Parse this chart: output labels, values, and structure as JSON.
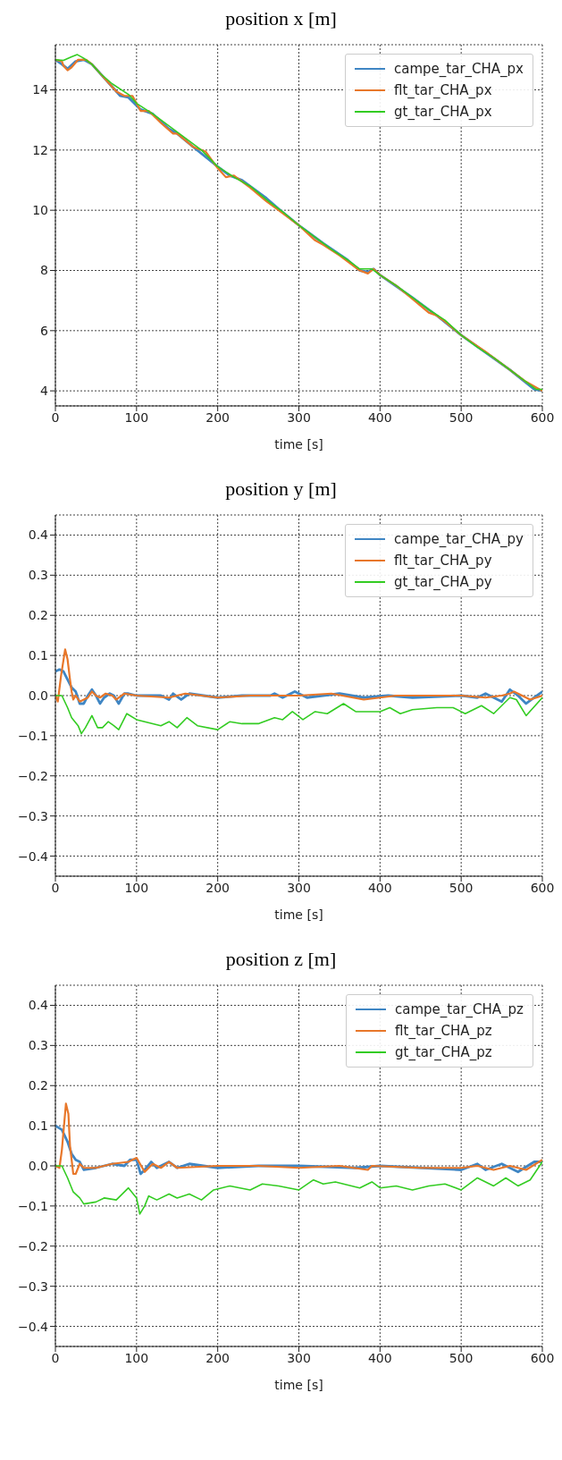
{
  "chart_data": [
    {
      "type": "line",
      "title": "position x [m]",
      "xlabel": "time [s]",
      "xlim": [
        0,
        600
      ],
      "xticks": [
        0,
        100,
        200,
        300,
        400,
        500,
        600
      ],
      "ylim": [
        3.5,
        15.5
      ],
      "yticks": [
        4,
        6,
        8,
        10,
        12,
        14
      ],
      "grid": true,
      "legend": "top right",
      "series": [
        {
          "name": "campe_tar_CHA_px",
          "color": "#3f86c4",
          "x": [
            0,
            8,
            15,
            25,
            35,
            45,
            60,
            80,
            90,
            105,
            120,
            140,
            150,
            170,
            200,
            215,
            230,
            260,
            275,
            300,
            330,
            360,
            375,
            385,
            392,
            400,
            440,
            470,
            500,
            560,
            590,
            600
          ],
          "values": [
            15.0,
            14.85,
            14.7,
            14.95,
            15.0,
            14.85,
            14.4,
            13.8,
            13.75,
            13.35,
            13.2,
            12.7,
            12.55,
            12.1,
            11.45,
            11.15,
            11.0,
            10.4,
            10.05,
            9.5,
            8.9,
            8.35,
            8.0,
            7.95,
            8.05,
            7.85,
            7.1,
            6.5,
            5.85,
            4.7,
            4.05,
            4.0
          ]
        },
        {
          "name": "flt_tar_CHA_px",
          "color": "#e8772a",
          "x": [
            0,
            8,
            10,
            15,
            20,
            28,
            38,
            45,
            60,
            75,
            85,
            95,
            105,
            115,
            130,
            145,
            150,
            170,
            185,
            200,
            210,
            220,
            240,
            260,
            275,
            285,
            300,
            320,
            330,
            350,
            375,
            385,
            392,
            400,
            420,
            440,
            460,
            470,
            480,
            500,
            530,
            560,
            580,
            600
          ],
          "values": [
            15.0,
            14.95,
            14.8,
            14.65,
            14.75,
            15.0,
            15.0,
            14.85,
            14.4,
            13.95,
            13.8,
            13.8,
            13.3,
            13.3,
            12.9,
            12.55,
            12.55,
            12.1,
            11.95,
            11.4,
            11.1,
            11.15,
            10.75,
            10.3,
            10.0,
            9.8,
            9.5,
            9.0,
            8.85,
            8.5,
            8.0,
            7.9,
            8.05,
            7.85,
            7.5,
            7.05,
            6.6,
            6.5,
            6.3,
            5.85,
            5.3,
            4.7,
            4.3,
            4.0
          ]
        },
        {
          "name": "gt_tar_CHA_px",
          "color": "#33cc22",
          "x": [
            0,
            10,
            20,
            27,
            35,
            45,
            55,
            70,
            90,
            100,
            120,
            140,
            160,
            180,
            200,
            220,
            240,
            260,
            280,
            300,
            320,
            340,
            360,
            375,
            390,
            400,
            420,
            440,
            460,
            480,
            500,
            520,
            540,
            560,
            580,
            592,
            600
          ],
          "values": [
            15.0,
            14.98,
            15.1,
            15.17,
            15.05,
            14.85,
            14.55,
            14.2,
            13.85,
            13.55,
            13.2,
            12.8,
            12.4,
            12.0,
            11.45,
            11.1,
            10.8,
            10.35,
            9.95,
            9.5,
            9.1,
            8.7,
            8.35,
            8.05,
            8.05,
            7.85,
            7.5,
            7.1,
            6.7,
            6.35,
            5.85,
            5.45,
            5.1,
            4.7,
            4.3,
            4.05,
            4.05
          ]
        }
      ]
    },
    {
      "type": "line",
      "title": "position y [m]",
      "xlabel": "time [s]",
      "xlim": [
        0,
        600
      ],
      "xticks": [
        0,
        100,
        200,
        300,
        400,
        500,
        600
      ],
      "ylim": [
        -0.45,
        0.45
      ],
      "yticks": [
        {
          "value": -0.4,
          "label": "−0.4"
        },
        {
          "value": -0.3,
          "label": "−0.3"
        },
        {
          "value": -0.2,
          "label": "−0.2"
        },
        {
          "value": -0.1,
          "label": "−0.1"
        },
        {
          "value": 0,
          "label": "0.0"
        },
        {
          "value": 0.1,
          "label": "0.1"
        },
        {
          "value": 0.2,
          "label": "0.2"
        },
        {
          "value": 0.3,
          "label": "0.3"
        },
        {
          "value": 0.4,
          "label": "0.4"
        }
      ],
      "grid": true,
      "legend": "top right",
      "series": [
        {
          "name": "campe_tar_CHA_py",
          "color": "#3f86c4",
          "x": [
            0,
            5,
            10,
            15,
            20,
            25,
            30,
            35,
            40,
            45,
            50,
            55,
            60,
            67,
            72,
            78,
            85,
            90,
            100,
            130,
            140,
            145,
            155,
            165,
            200,
            230,
            265,
            270,
            280,
            295,
            310,
            350,
            380,
            410,
            440,
            500,
            520,
            530,
            540,
            550,
            560,
            570,
            580,
            590,
            600
          ],
          "values": [
            0.06,
            0.065,
            0.06,
            0.04,
            0.02,
            0.01,
            -0.02,
            -0.02,
            0.0,
            0.015,
            0.0,
            -0.02,
            -0.005,
            0.005,
            0.0,
            -0.02,
            0.005,
            0.005,
            0.0,
            0.0,
            -0.01,
            0.005,
            -0.01,
            0.005,
            -0.005,
            0.0,
            0.0,
            0.005,
            -0.005,
            0.01,
            -0.005,
            0.005,
            -0.005,
            0.0,
            -0.005,
            0.0,
            -0.005,
            0.005,
            -0.005,
            -0.015,
            0.015,
            0.0,
            -0.02,
            -0.005,
            0.01
          ]
        },
        {
          "name": "flt_tar_CHA_py",
          "color": "#e8772a",
          "x": [
            0,
            3,
            7,
            12,
            15,
            18,
            20,
            22,
            25,
            30,
            40,
            45,
            50,
            55,
            62,
            70,
            75,
            85,
            100,
            140,
            160,
            200,
            240,
            300,
            340,
            380,
            420,
            500,
            530,
            550,
            560,
            565,
            575,
            585,
            600
          ],
          "values": [
            0.0,
            -0.015,
            0.05,
            0.115,
            0.09,
            0.04,
            0.01,
            -0.01,
            0.0,
            -0.015,
            -0.005,
            0.01,
            0.0,
            -0.005,
            0.005,
            0.0,
            -0.01,
            0.005,
            0.0,
            -0.005,
            0.005,
            -0.005,
            0.0,
            0.0,
            0.005,
            -0.01,
            0.0,
            0.0,
            -0.005,
            0.0,
            0.005,
            0.01,
            0.0,
            -0.01,
            0.0
          ]
        },
        {
          "name": "gt_tar_CHA_py",
          "color": "#33cc22",
          "x": [
            0,
            8,
            15,
            20,
            28,
            32,
            37,
            45,
            52,
            58,
            65,
            72,
            78,
            88,
            100,
            120,
            130,
            140,
            150,
            162,
            175,
            200,
            215,
            230,
            250,
            270,
            280,
            292,
            305,
            320,
            335,
            355,
            370,
            390,
            400,
            412,
            425,
            440,
            470,
            490,
            505,
            525,
            540,
            560,
            568,
            580,
            600
          ],
          "values": [
            0.0,
            0.0,
            -0.03,
            -0.055,
            -0.075,
            -0.095,
            -0.08,
            -0.05,
            -0.08,
            -0.08,
            -0.065,
            -0.075,
            -0.085,
            -0.045,
            -0.06,
            -0.07,
            -0.075,
            -0.065,
            -0.08,
            -0.055,
            -0.075,
            -0.085,
            -0.065,
            -0.07,
            -0.07,
            -0.055,
            -0.06,
            -0.04,
            -0.06,
            -0.04,
            -0.045,
            -0.02,
            -0.04,
            -0.04,
            -0.04,
            -0.03,
            -0.045,
            -0.035,
            -0.03,
            -0.03,
            -0.045,
            -0.025,
            -0.045,
            -0.005,
            -0.01,
            -0.05,
            -0.005
          ]
        }
      ]
    },
    {
      "type": "line",
      "title": "position z [m]",
      "xlabel": "time [s]",
      "xlim": [
        0,
        600
      ],
      "xticks": [
        0,
        100,
        200,
        300,
        400,
        500,
        600
      ],
      "ylim": [
        -0.45,
        0.45
      ],
      "yticks": [
        {
          "value": -0.4,
          "label": "−0.4"
        },
        {
          "value": -0.3,
          "label": "−0.3"
        },
        {
          "value": -0.2,
          "label": "−0.2"
        },
        {
          "value": -0.1,
          "label": "−0.1"
        },
        {
          "value": 0,
          "label": "0.0"
        },
        {
          "value": 0.1,
          "label": "0.1"
        },
        {
          "value": 0.2,
          "label": "0.2"
        },
        {
          "value": 0.3,
          "label": "0.3"
        },
        {
          "value": 0.4,
          "label": "0.4"
        }
      ],
      "grid": true,
      "legend": "top right",
      "series": [
        {
          "name": "campe_tar_CHA_pz",
          "color": "#3f86c4",
          "x": [
            0,
            8,
            15,
            20,
            25,
            30,
            35,
            50,
            70,
            85,
            92,
            100,
            105,
            110,
            118,
            125,
            140,
            150,
            165,
            200,
            250,
            300,
            370,
            400,
            500,
            520,
            530,
            550,
            570,
            590,
            600
          ],
          "values": [
            0.1,
            0.09,
            0.06,
            0.03,
            0.015,
            0.01,
            -0.01,
            -0.005,
            0.005,
            0.0,
            0.015,
            0.015,
            -0.02,
            -0.01,
            0.01,
            -0.005,
            0.01,
            -0.005,
            0.005,
            -0.005,
            0.0,
            0.0,
            -0.005,
            0.0,
            -0.01,
            0.005,
            -0.01,
            0.005,
            -0.015,
            0.01,
            0.01
          ]
        },
        {
          "name": "flt_tar_CHA_pz",
          "color": "#e8772a",
          "x": [
            0,
            5,
            8,
            13,
            16,
            18,
            22,
            25,
            30,
            35,
            50,
            70,
            90,
            100,
            110,
            120,
            130,
            140,
            150,
            200,
            250,
            300,
            350,
            385,
            390,
            450,
            500,
            520,
            540,
            560,
            580,
            600
          ],
          "values": [
            0.0,
            -0.005,
            0.04,
            0.155,
            0.13,
            0.05,
            -0.02,
            -0.02,
            0.005,
            -0.005,
            -0.005,
            0.005,
            0.01,
            0.02,
            -0.015,
            0.005,
            -0.005,
            0.01,
            -0.005,
            0.0,
            0.0,
            -0.005,
            0.0,
            -0.01,
            0.0,
            -0.005,
            -0.005,
            0.0,
            -0.01,
            0.0,
            -0.01,
            0.015
          ]
        },
        {
          "name": "gt_tar_CHA_pz",
          "color": "#33cc22",
          "x": [
            0,
            8,
            15,
            22,
            30,
            35,
            50,
            60,
            75,
            90,
            100,
            104,
            110,
            115,
            125,
            140,
            150,
            165,
            180,
            195,
            215,
            240,
            255,
            275,
            300,
            318,
            330,
            345,
            365,
            375,
            390,
            400,
            420,
            440,
            460,
            480,
            500,
            520,
            540,
            555,
            570,
            585,
            600
          ],
          "values": [
            0.0,
            0.0,
            -0.03,
            -0.065,
            -0.08,
            -0.095,
            -0.09,
            -0.08,
            -0.085,
            -0.055,
            -0.08,
            -0.12,
            -0.1,
            -0.075,
            -0.085,
            -0.07,
            -0.08,
            -0.07,
            -0.085,
            -0.06,
            -0.05,
            -0.06,
            -0.045,
            -0.05,
            -0.06,
            -0.035,
            -0.045,
            -0.04,
            -0.05,
            -0.055,
            -0.04,
            -0.055,
            -0.05,
            -0.06,
            -0.05,
            -0.045,
            -0.06,
            -0.03,
            -0.05,
            -0.03,
            -0.05,
            -0.035,
            0.01
          ]
        }
      ]
    }
  ]
}
